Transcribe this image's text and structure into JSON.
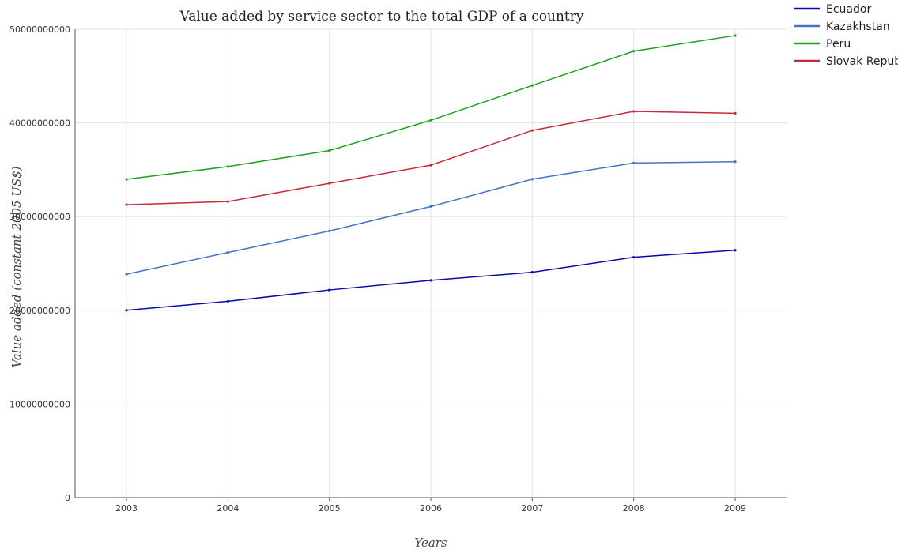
{
  "chart_data": {
    "type": "line",
    "title": "Value added by service sector to the total GDP of a country",
    "xlabel": "Years",
    "ylabel": "Value added (constant 2005 US$)",
    "x": [
      "2003",
      "2004",
      "2005",
      "2006",
      "2007",
      "2008",
      "2009"
    ],
    "ylim": [
      0,
      50000000000
    ],
    "yticks": [
      0,
      10000000000,
      20000000000,
      30000000000,
      40000000000,
      50000000000
    ],
    "ytick_labels": [
      "0",
      "10000000000",
      "20000000000",
      "30000000000",
      "40000000000",
      "50000000000"
    ],
    "grid": true,
    "legend_position": "top-right",
    "series": [
      {
        "name": "Ecuador",
        "color": "#0a0aa8",
        "values": [
          20000000000,
          20960000000,
          22170000000,
          23200000000,
          24060000000,
          25660000000,
          26410000000
        ]
      },
      {
        "name": "Kazakhstan",
        "color": "#4472c4",
        "values": [
          23850000000,
          26170000000,
          28470000000,
          31080000000,
          33990000000,
          35720000000,
          35860000000
        ]
      },
      {
        "name": "Peru",
        "color": "#22a022",
        "values": [
          33980000000,
          35340000000,
          37050000000,
          40280000000,
          44000000000,
          47660000000,
          49330000000
        ]
      },
      {
        "name": "Slovak Republic",
        "color": "#c8283c",
        "values": [
          31270000000,
          31610000000,
          33550000000,
          35490000000,
          39200000000,
          41230000000,
          41030000000
        ]
      }
    ]
  }
}
